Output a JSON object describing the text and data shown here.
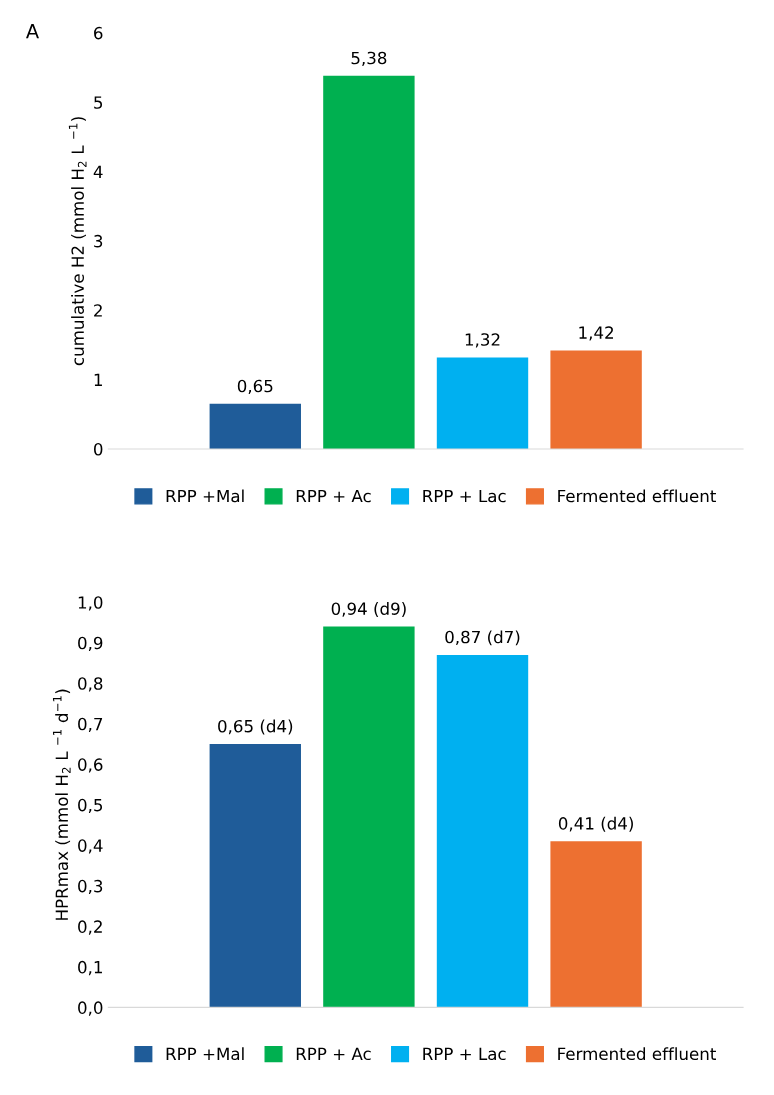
{
  "chart_data": [
    {
      "type": "bar",
      "ylabel": "cumulative H2 (mmol H$_{2}$ L $^{−1}$)",
      "annotations": [
        "A"
      ],
      "categories": [
        null
      ],
      "series": [
        {
          "name": "RPP +Mal",
          "color": "#1f5c99",
          "values": [
            0.65
          ],
          "value_labels": [
            "0,65"
          ]
        },
        {
          "name": "RPP + Ac",
          "color": "#00b050",
          "values": [
            5.38
          ],
          "value_labels": [
            "5,38"
          ]
        },
        {
          "name": "RPP + Lac",
          "color": "#00b0f0",
          "values": [
            1.32
          ],
          "value_labels": [
            "1,32"
          ]
        },
        {
          "name": "Fermented effluent",
          "color": "#ed7031",
          "values": [
            1.42
          ],
          "value_labels": [
            "1,42"
          ]
        }
      ],
      "ylim": [
        0,
        6
      ],
      "yticks": [
        0,
        1,
        2,
        3,
        4,
        5,
        6
      ],
      "legend": "bottom"
    },
    {
      "type": "bar",
      "ylabel": "HPRmax (mmol H$_{2}$ L $^{−1}$ d$^{−1}$)",
      "categories": [
        null
      ],
      "series": [
        {
          "name": "RPP +Mal",
          "color": "#1f5c99",
          "values": [
            0.65
          ],
          "value_labels": [
            "0,65 (d4)"
          ]
        },
        {
          "name": "RPP + Ac",
          "color": "#00b050",
          "values": [
            0.94
          ],
          "value_labels": [
            "0,94 (d9)"
          ]
        },
        {
          "name": "RPP + Lac",
          "color": "#00b0f0",
          "values": [
            0.87
          ],
          "value_labels": [
            "0,87 (d7)"
          ]
        },
        {
          "name": "Fermented effluent",
          "color": "#ed7031",
          "values": [
            0.41
          ],
          "value_labels": [
            "0,41 (d4)"
          ]
        }
      ],
      "ylim": [
        0,
        1.0
      ],
      "yticks": [
        {
          "value": 0,
          "label": "0,0"
        },
        {
          "value": 0.1,
          "label": "0,1"
        },
        {
          "value": 0.2,
          "label": "0,2"
        },
        {
          "value": 0.3,
          "label": "0,3"
        },
        {
          "value": 0.4,
          "label": "0,4"
        },
        {
          "value": 0.5,
          "label": "0,5"
        },
        {
          "value": 0.6,
          "label": "0,6"
        },
        {
          "value": 0.7,
          "label": "0,7"
        },
        {
          "value": 0.8,
          "label": "0,8"
        },
        {
          "value": 0.9,
          "label": "0,9"
        },
        {
          "value": 1.0,
          "label": "1,0"
        }
      ],
      "legend": "bottom"
    }
  ]
}
